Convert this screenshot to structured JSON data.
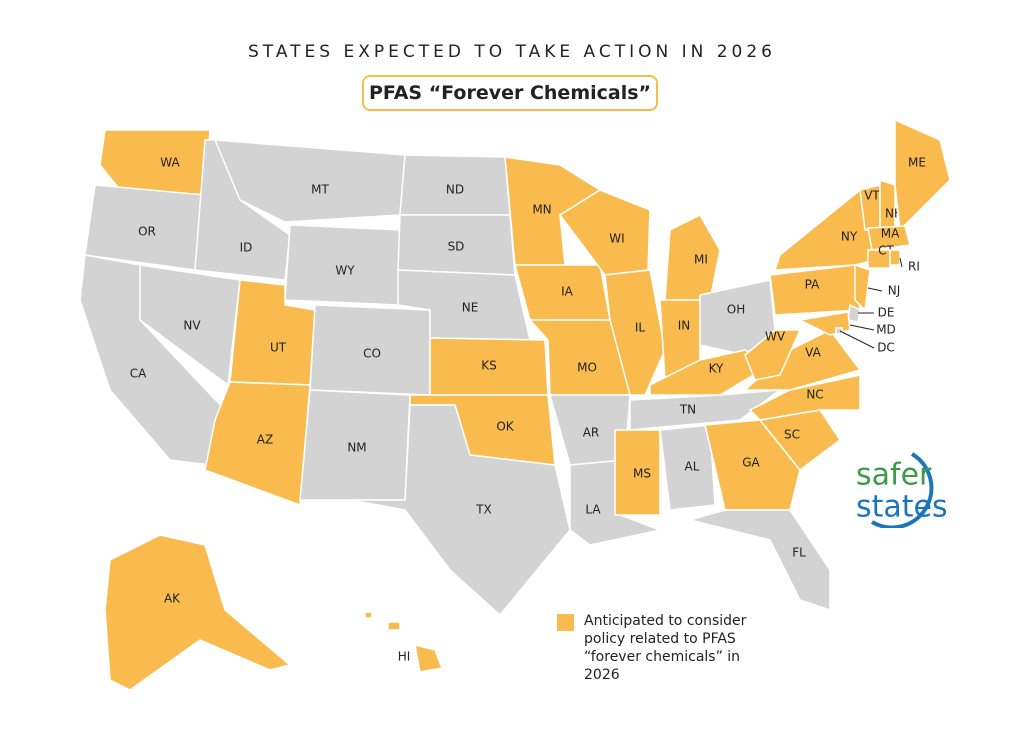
{
  "title": "STATES EXPECTED TO TAKE ACTION IN 2026",
  "subtitle": "PFAS “Forever Chemicals”",
  "legend": {
    "label": "Anticipated to consider policy related to PFAS “forever chemicals” in 2026",
    "color": "#f9bb4d"
  },
  "other_color": "#d3d3d3",
  "logo": {
    "line1": "safer",
    "line2": "states"
  },
  "states": [
    {
      "label": "WA",
      "highlighted": true
    },
    {
      "label": "OR",
      "highlighted": false
    },
    {
      "label": "CA",
      "highlighted": false
    },
    {
      "label": "NV",
      "highlighted": false
    },
    {
      "label": "ID",
      "highlighted": false
    },
    {
      "label": "MT",
      "highlighted": false
    },
    {
      "label": "WY",
      "highlighted": false
    },
    {
      "label": "UT",
      "highlighted": true
    },
    {
      "label": "CO",
      "highlighted": false
    },
    {
      "label": "AZ",
      "highlighted": true
    },
    {
      "label": "NM",
      "highlighted": false
    },
    {
      "label": "ND",
      "highlighted": false
    },
    {
      "label": "SD",
      "highlighted": false
    },
    {
      "label": "NE",
      "highlighted": false
    },
    {
      "label": "KS",
      "highlighted": true
    },
    {
      "label": "OK",
      "highlighted": true
    },
    {
      "label": "TX",
      "highlighted": false
    },
    {
      "label": "MN",
      "highlighted": true
    },
    {
      "label": "IA",
      "highlighted": true
    },
    {
      "label": "MO",
      "highlighted": true
    },
    {
      "label": "AR",
      "highlighted": false
    },
    {
      "label": "LA",
      "highlighted": false
    },
    {
      "label": "WI",
      "highlighted": true
    },
    {
      "label": "IL",
      "highlighted": true
    },
    {
      "label": "MI",
      "highlighted": true
    },
    {
      "label": "IN",
      "highlighted": true
    },
    {
      "label": "OH",
      "highlighted": false
    },
    {
      "label": "KY",
      "highlighted": true
    },
    {
      "label": "TN",
      "highlighted": false
    },
    {
      "label": "MS",
      "highlighted": true
    },
    {
      "label": "AL",
      "highlighted": false
    },
    {
      "label": "GA",
      "highlighted": true
    },
    {
      "label": "FL",
      "highlighted": false
    },
    {
      "label": "SC",
      "highlighted": true
    },
    {
      "label": "NC",
      "highlighted": true
    },
    {
      "label": "VA",
      "highlighted": true
    },
    {
      "label": "WV",
      "highlighted": true
    },
    {
      "label": "PA",
      "highlighted": true
    },
    {
      "label": "NY",
      "highlighted": true
    },
    {
      "label": "VT",
      "highlighted": true
    },
    {
      "label": "NH",
      "highlighted": true
    },
    {
      "label": "ME",
      "highlighted": true
    },
    {
      "label": "MA",
      "highlighted": true
    },
    {
      "label": "CT",
      "highlighted": true
    },
    {
      "label": "RI",
      "highlighted": true
    },
    {
      "label": "NJ",
      "highlighted": true
    },
    {
      "label": "DE",
      "highlighted": false
    },
    {
      "label": "MD",
      "highlighted": true
    },
    {
      "label": "DC",
      "highlighted": false
    },
    {
      "label": "AK",
      "highlighted": true
    },
    {
      "label": "HI",
      "highlighted": true
    }
  ]
}
